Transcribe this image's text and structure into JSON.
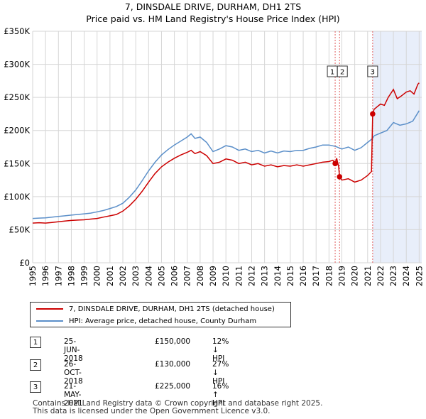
{
  "header": {
    "title": "7, DINSDALE DRIVE, DURHAM, DH1 2TS",
    "subtitle": "Price paid vs. HM Land Registry's House Price Index (HPI)"
  },
  "colors": {
    "property": "#cc0000",
    "hpi": "#5b8fc9",
    "highlight": "#e8eefa",
    "marker_line": "#e06060"
  },
  "chart_data": {
    "type": "line",
    "title": "7, DINSDALE DRIVE, DURHAM, DH1 2TS",
    "subtitle": "Price paid vs. HM Land Registry's House Price Index (HPI)",
    "xlabel": "",
    "ylabel": "",
    "xlim": [
      1995,
      2025.2
    ],
    "ylim": [
      0,
      350000
    ],
    "grid": true,
    "y_ticks": [
      0,
      50000,
      100000,
      150000,
      200000,
      250000,
      300000,
      350000
    ],
    "y_tick_labels": [
      "£0",
      "£50K",
      "£100K",
      "£150K",
      "£200K",
      "£250K",
      "£300K",
      "£350K"
    ],
    "x_ticks": [
      1995,
      1996,
      1997,
      1998,
      1999,
      2000,
      2001,
      2002,
      2003,
      2004,
      2005,
      2006,
      2007,
      2008,
      2009,
      2010,
      2011,
      2012,
      2013,
      2014,
      2015,
      2016,
      2017,
      2018,
      2019,
      2020,
      2021,
      2022,
      2023,
      2024,
      2025
    ],
    "x_tick_labels": [
      "1995",
      "1996",
      "1997",
      "1998",
      "1999",
      "2000",
      "2001",
      "2002",
      "2003",
      "2004",
      "2005",
      "2006",
      "2007",
      "2008",
      "2009",
      "2010",
      "2011",
      "2012",
      "2013",
      "2014",
      "2015",
      "2016",
      "2017",
      "2018",
      "2019",
      "2020",
      "2021",
      "2022",
      "2023",
      "2024",
      "2025"
    ],
    "highlight_span": [
      2021.39,
      2025.2
    ],
    "series": [
      {
        "name": "7, DINSDALE DRIVE, DURHAM, DH1 2TS (detached house)",
        "x": [
          1995.0,
          1995.5,
          1996.0,
          1996.5,
          1997.0,
          1997.5,
          1998.0,
          1998.5,
          1999.0,
          1999.5,
          2000.0,
          2000.5,
          2001.0,
          2001.5,
          2002.0,
          2002.5,
          2003.0,
          2003.5,
          2004.0,
          2004.5,
          2005.0,
          2005.5,
          2006.0,
          2006.5,
          2007.0,
          2007.3,
          2007.6,
          2008.0,
          2008.5,
          2009.0,
          2009.5,
          2010.0,
          2010.5,
          2011.0,
          2011.5,
          2012.0,
          2012.5,
          2013.0,
          2013.5,
          2014.0,
          2014.5,
          2015.0,
          2015.5,
          2016.0,
          2016.5,
          2017.0,
          2017.5,
          2018.0,
          2018.3,
          2018.48,
          2018.6,
          2018.75,
          2018.82,
          2019.0,
          2019.5,
          2020.0,
          2020.5,
          2021.0,
          2021.3,
          2021.39,
          2021.5,
          2021.75,
          2022.0,
          2022.3,
          2022.6,
          2023.0,
          2023.3,
          2023.6,
          2024.0,
          2024.3,
          2024.6,
          2024.9,
          2025.0
        ],
        "values": [
          60000,
          60500,
          60000,
          61000,
          62000,
          63000,
          64000,
          64500,
          65000,
          66000,
          67000,
          69000,
          71000,
          73000,
          78000,
          86000,
          96000,
          108000,
          122000,
          135000,
          145000,
          152000,
          158000,
          163000,
          167000,
          170000,
          165000,
          168000,
          162000,
          150000,
          152000,
          157000,
          155000,
          150000,
          152000,
          148000,
          150000,
          146000,
          148000,
          145000,
          147000,
          146000,
          148000,
          146000,
          148000,
          150000,
          152000,
          153000,
          155000,
          150000,
          158000,
          145000,
          130000,
          125000,
          127000,
          122000,
          125000,
          132000,
          138000,
          225000,
          232000,
          236000,
          240000,
          238000,
          250000,
          262000,
          248000,
          252000,
          258000,
          260000,
          255000,
          270000,
          272000
        ]
      },
      {
        "name": "HPI: Average price, detached house, County Durham",
        "x": [
          1995.0,
          1995.5,
          1996.0,
          1996.5,
          1997.0,
          1997.5,
          1998.0,
          1998.5,
          1999.0,
          1999.5,
          2000.0,
          2000.5,
          2001.0,
          2001.5,
          2002.0,
          2002.5,
          2003.0,
          2003.5,
          2004.0,
          2004.5,
          2005.0,
          2005.5,
          2006.0,
          2006.5,
          2007.0,
          2007.3,
          2007.6,
          2008.0,
          2008.5,
          2009.0,
          2009.5,
          2010.0,
          2010.5,
          2011.0,
          2011.5,
          2012.0,
          2012.5,
          2013.0,
          2013.5,
          2014.0,
          2014.5,
          2015.0,
          2015.5,
          2016.0,
          2016.5,
          2017.0,
          2017.5,
          2018.0,
          2018.5,
          2019.0,
          2019.5,
          2020.0,
          2020.5,
          2021.0,
          2021.39,
          2021.5,
          2022.0,
          2022.5,
          2023.0,
          2023.5,
          2024.0,
          2024.5,
          2025.0
        ],
        "values": [
          67000,
          67500,
          68000,
          69000,
          70000,
          71000,
          72000,
          73000,
          74000,
          75000,
          77000,
          79000,
          82000,
          85000,
          90000,
          99000,
          110000,
          124000,
          139000,
          152000,
          163000,
          171000,
          178000,
          184000,
          190000,
          195000,
          188000,
          190000,
          182000,
          168000,
          172000,
          177000,
          175000,
          170000,
          172000,
          168000,
          170000,
          166000,
          169000,
          166000,
          169000,
          168000,
          170000,
          170000,
          173000,
          175000,
          178000,
          178000,
          176000,
          172000,
          175000,
          170000,
          174000,
          182000,
          188000,
          192000,
          196000,
          200000,
          212000,
          208000,
          210000,
          214000,
          230000
        ]
      }
    ],
    "sale_markers": [
      {
        "label": "1",
        "x": 2018.48,
        "value": 150000
      },
      {
        "label": "2",
        "x": 2018.82,
        "value": 130000
      },
      {
        "label": "3",
        "x": 2021.39,
        "value": 225000
      }
    ]
  },
  "legend": {
    "property_label": "7, DINSDALE DRIVE, DURHAM, DH1 2TS (detached house)",
    "hpi_label": "HPI: Average price, detached house, County Durham"
  },
  "transactions": [
    {
      "num": "1",
      "date": "25-JUN-2018",
      "price": "£150,000",
      "hpi": "12% ↓ HPI"
    },
    {
      "num": "2",
      "date": "26-OCT-2018",
      "price": "£130,000",
      "hpi": "27% ↓ HPI"
    },
    {
      "num": "3",
      "date": "21-MAY-2021",
      "price": "£225,000",
      "hpi": "16% ↑ HPI"
    }
  ],
  "footer": {
    "line1": "Contains HM Land Registry data © Crown copyright and database right 2025.",
    "line2": "This data is licensed under the Open Government Licence v3.0."
  }
}
